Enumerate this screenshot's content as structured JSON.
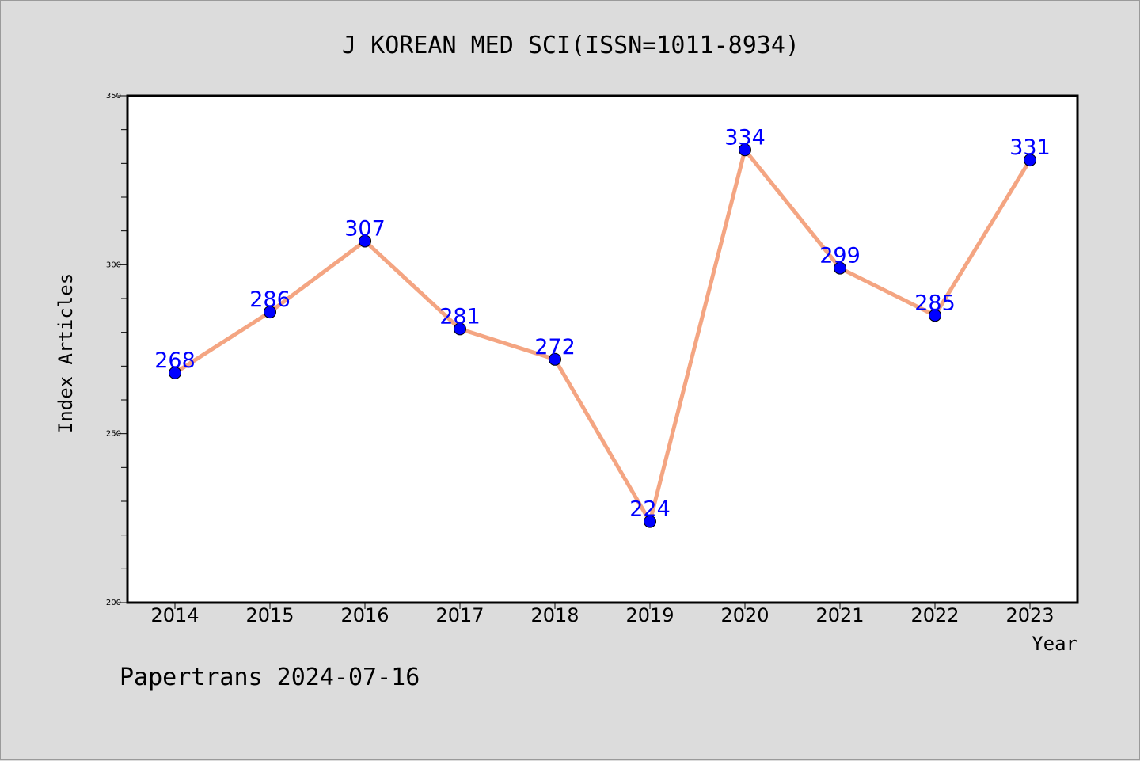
{
  "chart_data": {
    "type": "line",
    "title": "J KOREAN MED SCI(ISSN=1011-8934)",
    "xlabel": "Year",
    "ylabel": "Index Articles",
    "categories": [
      "2014",
      "2015",
      "2016",
      "2017",
      "2018",
      "2019",
      "2020",
      "2021",
      "2022",
      "2023"
    ],
    "series": [
      {
        "values": [
          268,
          286,
          307,
          281,
          272,
          224,
          334,
          299,
          285,
          331
        ],
        "line_color": "#f4a582",
        "marker_color": "#0000ff"
      }
    ],
    "data_label_color": "#0000ff",
    "ylim": [
      200,
      350
    ],
    "yticks_major": [
      200,
      250,
      300,
      350
    ],
    "ytick_labels": [
      "200",
      "250",
      "300",
      "350"
    ],
    "ytick_minor_step": 10,
    "grid": false
  },
  "footer": {
    "credit": "Papertrans 2024-07-16"
  }
}
